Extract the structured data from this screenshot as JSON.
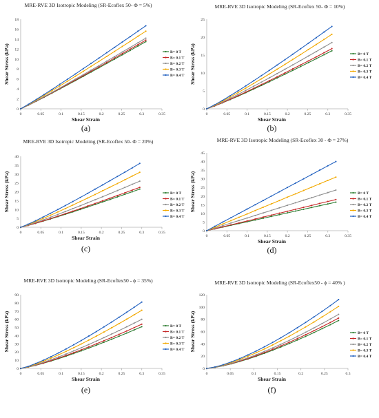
{
  "figure": {
    "legend_labels": [
      "B= 0 T",
      "B= 0.1 T",
      "B= 0.2 T",
      "B= 0.3 T",
      "B= 0.4 T"
    ],
    "series_colors": [
      "#2e7d32",
      "#c62828",
      "#8e8e8e",
      "#f2a900",
      "#1f5fbf"
    ],
    "axis_color": "#b0b0b0"
  },
  "chart_data": [
    {
      "type": "line",
      "title": "MRE-RVE 3D Isotropic Modeling (SR-Ecoflex 50- Φ = 5%)",
      "panel_label": "(a)",
      "xlabel": "Shear Strain",
      "ylabel": "Shear Stress (kPa)",
      "xlim": [
        0,
        0.35
      ],
      "ylim": [
        0,
        18
      ],
      "x_ticks": [
        0,
        0.05,
        0.1,
        0.15,
        0.2,
        0.25,
        0.3,
        0.35
      ],
      "y_ticks": [
        0,
        2,
        4,
        6,
        8,
        10,
        12,
        14,
        16,
        18
      ],
      "x_tick_labels": [
        "0",
        "0.05",
        "0.1",
        "0.15",
        "0.2",
        "0.25",
        "0.3",
        "0.35"
      ],
      "y_tick_labels": [
        "0",
        "2",
        "4",
        "6",
        "8",
        "10",
        "12",
        "14",
        "16",
        "18"
      ],
      "x_max": 0.31,
      "curve_power": 1.05,
      "series": [
        {
          "name": "B= 0 T",
          "end": 13.5
        },
        {
          "name": "B= 0.1 T",
          "end": 13.8
        },
        {
          "name": "B= 0.2 T",
          "end": 14.2
        },
        {
          "name": "B= 0.3 T",
          "end": 15.6
        },
        {
          "name": "B= 0.4 T",
          "end": 16.7
        }
      ],
      "legend": "right",
      "grid": false
    },
    {
      "type": "line",
      "title": "MRE-RVE 3D Isotropic Modeling (SR-Ecoflex 50- Φ = 10%)",
      "panel_label": "(b)",
      "xlabel": "Shear Strain",
      "ylabel": "Shear Stress (kPa)",
      "xlim": [
        0,
        0.35
      ],
      "ylim": [
        0,
        25
      ],
      "x_ticks": [
        0,
        0.05,
        0.1,
        0.15,
        0.2,
        0.25,
        0.3,
        0.35
      ],
      "y_ticks": [
        0,
        5,
        10,
        15,
        20,
        25
      ],
      "x_tick_labels": [
        "0",
        "0.05",
        "0.1",
        "0.15",
        "0.2",
        "0.25",
        "0.3",
        "0.35"
      ],
      "y_tick_labels": [
        "0",
        "5",
        "10",
        "15",
        "20",
        "25"
      ],
      "x_max": 0.31,
      "curve_power": 1.1,
      "series": [
        {
          "name": "B= 0 T",
          "end": 16.2
        },
        {
          "name": "B= 0.1 T",
          "end": 16.8
        },
        {
          "name": "B= 0.2 T",
          "end": 18.5
        },
        {
          "name": "B= 0.3 T",
          "end": 20.8
        },
        {
          "name": "B= 0.4 T",
          "end": 23.0
        }
      ],
      "legend": "right",
      "grid": false
    },
    {
      "type": "line",
      "title": "MRE-RVE 3D Isotropic Modeling (SR-Ecoflex 50- Φ = 20%)",
      "panel_label": "(c)",
      "xlabel": "Shear Strain",
      "ylabel": "Shear Stress (kPa)",
      "xlim": [
        0,
        0.35
      ],
      "ylim": [
        0,
        40
      ],
      "x_ticks": [
        0,
        0.05,
        0.1,
        0.15,
        0.2,
        0.25,
        0.3,
        0.35
      ],
      "y_ticks": [
        0,
        5,
        10,
        15,
        20,
        25,
        30,
        35,
        40
      ],
      "x_tick_labels": [
        "0",
        "0.05",
        "0.1",
        "0.15",
        "0.2",
        "0.25",
        "0.3",
        "0.35"
      ],
      "y_tick_labels": [
        "0",
        "5",
        "10",
        "15",
        "20",
        "25",
        "30",
        "35",
        "40"
      ],
      "x_max": 0.295,
      "curve_power": 1.1,
      "series": [
        {
          "name": "B= 0 T",
          "end": 21.5
        },
        {
          "name": "B= 0.1 T",
          "end": 22.5
        },
        {
          "name": "B= 0.2 T",
          "end": 26.0
        },
        {
          "name": "B= 0.3 T",
          "end": 31.0
        },
        {
          "name": "B= 0.4 T",
          "end": 36.0
        }
      ],
      "legend": "right",
      "grid": false
    },
    {
      "type": "line",
      "title": "MRE-RVE 3D Isotropic Modeling (SR-Ecoflex 30 - Φ = 27%)",
      "panel_label": "(d)",
      "xlabel": "Shear Strain",
      "ylabel": "Shear Stress (kPa)",
      "xlim": [
        0,
        0.35
      ],
      "ylim": [
        0,
        45
      ],
      "x_ticks": [
        0,
        0.05,
        0.1,
        0.15,
        0.2,
        0.25,
        0.3,
        0.35
      ],
      "y_ticks": [
        0,
        5,
        10,
        15,
        20,
        25,
        30,
        35,
        40,
        45
      ],
      "x_tick_labels": [
        "0",
        "0.05",
        "0.1",
        "0.15",
        "0.2",
        "0.25",
        "0.3",
        "0.35"
      ],
      "y_tick_labels": [
        "0",
        "5",
        "10",
        "15",
        "20",
        "25",
        "30",
        "35",
        "40",
        "45"
      ],
      "x_max": 0.32,
      "curve_power": 1.0,
      "series": [
        {
          "name": "B= 0 T",
          "end": 16.5
        },
        {
          "name": "B= 0.1 T",
          "end": 18.0
        },
        {
          "name": "B= 0.2 T",
          "end": 23.5
        },
        {
          "name": "B= 0.3 T",
          "end": 31.0
        },
        {
          "name": "B= 0.4 T",
          "end": 40.0
        }
      ],
      "legend": "right",
      "grid": false
    },
    {
      "type": "line",
      "title": "MRE-RVE 3D Isotropic Modeling (SR-Ecoflex50 - ϕ = 35%)",
      "panel_label": "(e)",
      "xlabel": "Shear Strain",
      "ylabel": "Shear Stress (kPa)",
      "xlim": [
        0,
        0.35
      ],
      "ylim": [
        0,
        90
      ],
      "x_ticks": [
        0,
        0.05,
        0.1,
        0.15,
        0.2,
        0.25,
        0.3,
        0.35
      ],
      "y_ticks": [
        0,
        10,
        20,
        30,
        40,
        50,
        60,
        70,
        80,
        90
      ],
      "x_tick_labels": [
        "0",
        "0.05",
        "0.1",
        "0.15",
        "0.2",
        "0.25",
        "0.3",
        "0.35"
      ],
      "y_tick_labels": [
        "0",
        "10",
        "20",
        "30",
        "40",
        "50",
        "60",
        "70",
        "80",
        "90"
      ],
      "x_max": 0.3,
      "curve_power": 1.25,
      "series": [
        {
          "name": "B= 0 T",
          "end": 51.0
        },
        {
          "name": "B= 0.1 T",
          "end": 54.0
        },
        {
          "name": "B= 0.2 T",
          "end": 60.0
        },
        {
          "name": "B= 0.3 T",
          "end": 71.0
        },
        {
          "name": "B= 0.4 T",
          "end": 81.0
        }
      ],
      "legend": "right",
      "grid": false
    },
    {
      "type": "line",
      "title": "MRE-RVE 3D Isotropic Modeling (SR-Ecoflex50 - ϕ = 40% )",
      "panel_label": "(f)",
      "xlabel": "Shear Strain",
      "ylabel": "Shear Stress (kPa)",
      "xlim": [
        0,
        0.3
      ],
      "ylim": [
        0,
        120
      ],
      "x_ticks": [
        0,
        0.05,
        0.1,
        0.15,
        0.2,
        0.25,
        0.3
      ],
      "y_ticks": [
        0,
        20,
        40,
        60,
        80,
        100,
        120
      ],
      "x_tick_labels": [
        "0",
        "0.05",
        "0.1",
        "0.15",
        "0.2",
        "0.25",
        "0.3"
      ],
      "y_tick_labels": [
        "0",
        "20",
        "40",
        "60",
        "80",
        "100",
        "120"
      ],
      "x_max": 0.28,
      "curve_power": 1.4,
      "series": [
        {
          "name": "B= 0 T",
          "end": 78.0
        },
        {
          "name": "B= 0.1 T",
          "end": 82.0
        },
        {
          "name": "B= 0.2 T",
          "end": 88.0
        },
        {
          "name": "B= 0.3 T",
          "end": 101.0
        },
        {
          "name": "B= 0.4 T",
          "end": 112.0
        }
      ],
      "legend": "right",
      "grid": false
    }
  ]
}
